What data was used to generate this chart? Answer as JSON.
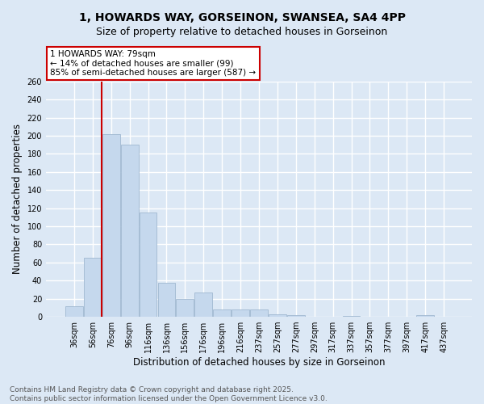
{
  "title_line1": "1, HOWARDS WAY, GORSEINON, SWANSEA, SA4 4PP",
  "title_line2": "Size of property relative to detached houses in Gorseinon",
  "xlabel": "Distribution of detached houses by size in Gorseinon",
  "ylabel": "Number of detached properties",
  "bar_color": "#c5d8ed",
  "bar_edge_color": "#a0b8d0",
  "line_color": "#cc0000",
  "categories": [
    "36sqm",
    "56sqm",
    "76sqm",
    "96sqm",
    "116sqm",
    "136sqm",
    "156sqm",
    "176sqm",
    "196sqm",
    "216sqm",
    "237sqm",
    "257sqm",
    "277sqm",
    "297sqm",
    "317sqm",
    "337sqm",
    "357sqm",
    "377sqm",
    "397sqm",
    "417sqm",
    "437sqm"
  ],
  "values": [
    12,
    65,
    202,
    190,
    115,
    38,
    20,
    27,
    8,
    8,
    8,
    3,
    2,
    0,
    0,
    1,
    0,
    0,
    0,
    2,
    0
  ],
  "property_bin_index": 2,
  "annotation_line1": "1 HOWARDS WAY: 79sqm",
  "annotation_line2": "← 14% of detached houses are smaller (99)",
  "annotation_line3": "85% of semi-detached houses are larger (587) →",
  "annotation_box_color": "#ffffff",
  "annotation_box_edge": "#cc0000",
  "ylim_max": 260,
  "ytick_step": 20,
  "footer_line1": "Contains HM Land Registry data © Crown copyright and database right 2025.",
  "footer_line2": "Contains public sector information licensed under the Open Government Licence v3.0.",
  "bg_color": "#dce8f5",
  "plot_bg_color": "#dce8f5",
  "grid_color": "#ffffff",
  "title_fontsize": 10,
  "subtitle_fontsize": 9,
  "axis_label_fontsize": 8.5,
  "tick_fontsize": 7,
  "annotation_fontsize": 7.5,
  "footer_fontsize": 6.5
}
